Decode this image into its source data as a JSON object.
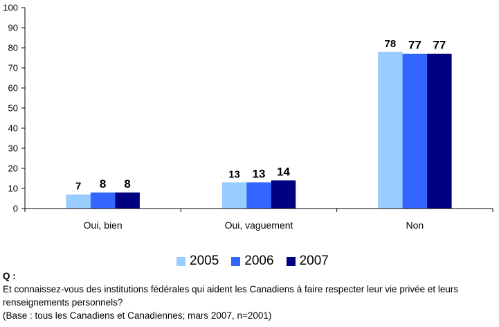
{
  "chart_data": {
    "type": "bar",
    "categories": [
      "Oui, bien",
      "Oui, vaguement",
      "Non"
    ],
    "series": [
      {
        "name": "2005",
        "values": [
          7,
          13,
          78
        ],
        "color": "#99ccff"
      },
      {
        "name": "2006",
        "values": [
          8,
          13,
          77
        ],
        "color": "#3366ff"
      },
      {
        "name": "2007",
        "values": [
          8,
          14,
          77
        ],
        "color": "#000080"
      }
    ],
    "y_ticks": [
      "0",
      "10",
      "20",
      "30",
      "40",
      "50",
      "60",
      "70",
      "80",
      "90",
      "100"
    ],
    "ylim": [
      0,
      100
    ],
    "grid": false,
    "legend_position": "bottom-center",
    "title": "",
    "xlabel": "",
    "ylabel": ""
  },
  "footnote": {
    "label": "Q :",
    "question": "Et connaissez-vous des institutions fédérales qui aident les Canadiens à faire respecter leur vie privée et leurs renseignements personnels?",
    "base": "(Base : tous les Canadiens et Canadiennes; mars 2007, n=2001)"
  }
}
